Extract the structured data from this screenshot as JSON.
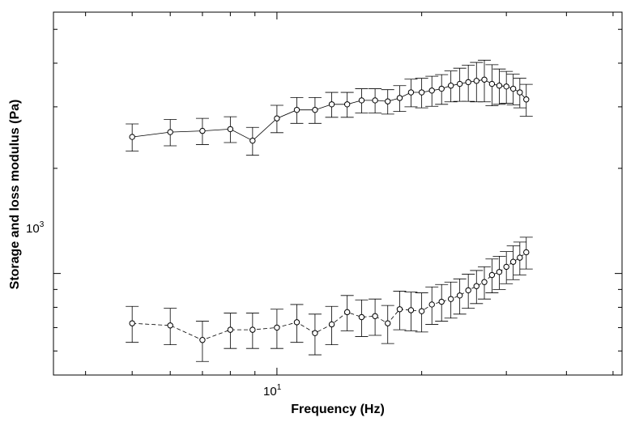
{
  "chart_data": {
    "type": "scatter",
    "xlabel": "Frequency (Hz)",
    "ylabel": "Storage and loss modulus (Pa)",
    "xscale": "log",
    "yscale": "log",
    "xlim": [
      3.43,
      52.2
    ],
    "ylim": [
      512,
      5600
    ],
    "grid": false,
    "x_tick_labels": [
      {
        "base": "10",
        "exp": "1",
        "value": 10
      }
    ],
    "y_tick_labels": [
      {
        "base": "10",
        "exp": "3",
        "value": 1000
      }
    ],
    "series": [
      {
        "line_style": "solid",
        "x": [
          5.0,
          6.0,
          7.0,
          8.0,
          8.9,
          10.0,
          11.0,
          12.0,
          13.0,
          14.0,
          15.0,
          16.0,
          17.0,
          18.0,
          19.0,
          20.0,
          21.0,
          22.0,
          23.0,
          24.0,
          25.0,
          26.0,
          27.0,
          28.0,
          29.0,
          30.0,
          31.0,
          32.0,
          33.0
        ],
        "y": [
          2460,
          2540,
          2560,
          2590,
          2400,
          2780,
          2940,
          2940,
          3050,
          3050,
          3130,
          3130,
          3110,
          3180,
          3300,
          3300,
          3340,
          3380,
          3450,
          3490,
          3530,
          3560,
          3590,
          3490,
          3450,
          3430,
          3380,
          3300,
          3150
        ],
        "err": [
          220,
          220,
          220,
          220,
          220,
          250,
          250,
          250,
          250,
          250,
          250,
          250,
          250,
          270,
          300,
          320,
          330,
          330,
          350,
          380,
          420,
          460,
          490,
          470,
          400,
          360,
          340,
          320,
          330
        ]
      },
      {
        "line_style": "dashed",
        "x": [
          5.0,
          6.0,
          7.0,
          8.0,
          8.9,
          10.0,
          11.0,
          12.0,
          13.0,
          14.0,
          15.0,
          16.0,
          17.0,
          18.0,
          19.0,
          20.0,
          21.0,
          22.0,
          23.0,
          24.0,
          25.0,
          26.0,
          27.0,
          28.0,
          29.0,
          30.0,
          31.0,
          32.0,
          33.0
        ],
        "y": [
          720,
          710,
          645,
          690,
          690,
          700,
          725,
          675,
          715,
          775,
          750,
          755,
          720,
          790,
          785,
          780,
          815,
          830,
          845,
          865,
          895,
          920,
          945,
          990,
          1010,
          1045,
          1080,
          1110,
          1150
        ],
        "err": [
          85,
          85,
          85,
          80,
          80,
          90,
          90,
          90,
          90,
          90,
          90,
          90,
          90,
          100,
          100,
          100,
          100,
          100,
          100,
          100,
          100,
          100,
          100,
          110,
          110,
          110,
          120,
          120,
          120
        ]
      }
    ]
  }
}
